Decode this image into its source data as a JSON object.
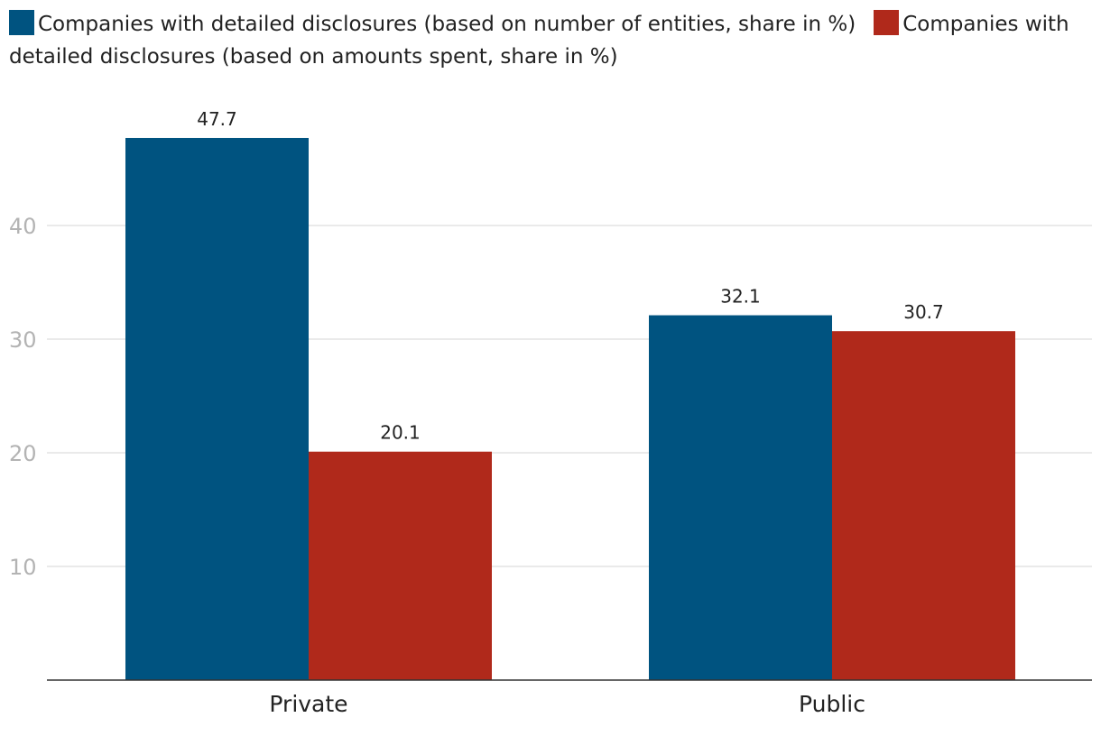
{
  "chart_data": {
    "type": "bar",
    "categories": [
      "Private",
      "Public"
    ],
    "series": [
      {
        "name": "Companies with detailed disclosures (based on number of entities, share in %)",
        "color": "#005380",
        "values": [
          47.7,
          32.1
        ],
        "labels": [
          "47.7",
          "32.1"
        ]
      },
      {
        "name": "Companies with detailed disclosures (based on amounts spent, share in %)",
        "color": "#b0291b",
        "values": [
          20.1,
          30.7
        ],
        "labels": [
          "20.1",
          "30.7"
        ]
      }
    ],
    "yticks": [
      "10",
      "20",
      "30",
      "40"
    ],
    "ylim": [
      0,
      50
    ],
    "grid": true,
    "legend": "top"
  }
}
